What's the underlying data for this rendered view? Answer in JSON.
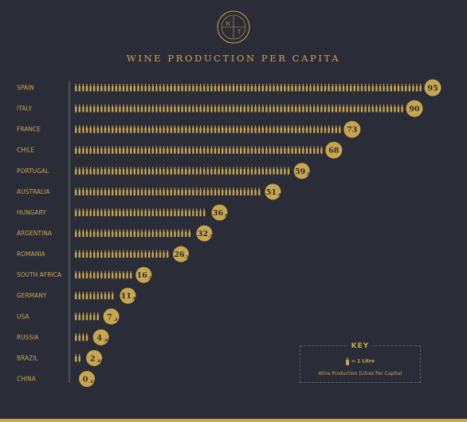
{
  "logo": {
    "letters": [
      "H",
      "T"
    ]
  },
  "title": "WINE PRODUCTION PER CAPITA",
  "colors": {
    "background": "#2a2d37",
    "accent": "#c9a54e",
    "dark_text": "#2a2d37"
  },
  "key": {
    "title": "KEY",
    "unit_label": "= 1 Litre",
    "caption": "Wine Production (Litres Per Capita)"
  },
  "chart_data": {
    "type": "bar",
    "title": "WINE PRODUCTION PER CAPITA",
    "unit": "Litres per capita",
    "categories": [
      "SPAIN",
      "ITALY",
      "FRANCE",
      "CHILE",
      "PORTUGAL",
      "AUSTRALIA",
      "HUNGARY",
      "ARGENTINA",
      "ROMANIA",
      "SOUTH AFRICA",
      "GERMANY",
      "USA",
      "RUSSIA",
      "BRAZIL",
      "CHINA"
    ],
    "values": [
      95,
      90,
      73,
      68,
      59.28,
      51.4,
      36.85,
      32.7,
      26.31,
      16.14,
      11.83,
      7.3,
      4.49,
      2.64,
      0.67
    ],
    "value_labels": [
      {
        "int": "95",
        "dec": ""
      },
      {
        "int": "90",
        "dec": ""
      },
      {
        "int": "73",
        "dec": ""
      },
      {
        "int": "68",
        "dec": ""
      },
      {
        "int": "59",
        "dec": ".28"
      },
      {
        "int": "51",
        "dec": ".4"
      },
      {
        "int": "36",
        "dec": ".85"
      },
      {
        "int": "32",
        "dec": ".7"
      },
      {
        "int": "26",
        "dec": ".31"
      },
      {
        "int": "16",
        "dec": ".14"
      },
      {
        "int": "11",
        "dec": ".83"
      },
      {
        "int": "7",
        "dec": ".3"
      },
      {
        "int": "4",
        "dec": ".49"
      },
      {
        "int": "2",
        "dec": ".64"
      },
      {
        "int": "0",
        "dec": ".67"
      }
    ]
  }
}
